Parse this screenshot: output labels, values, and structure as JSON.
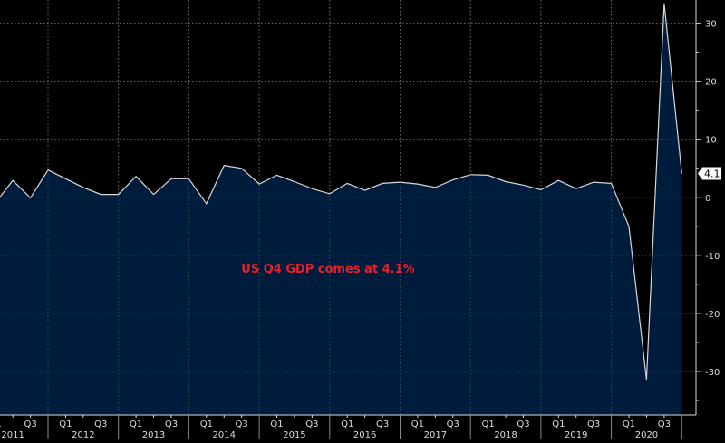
{
  "chart_data": {
    "type": "area",
    "title": "",
    "annotation": "US Q4 GDP comes at 4.1%",
    "last_value_label": "4.1",
    "years": [
      "2011",
      "2012",
      "2013",
      "2014",
      "2015",
      "2016",
      "2017",
      "2018",
      "2019",
      "2020"
    ],
    "quarter_tick_labels": [
      "Q1",
      "Q3"
    ],
    "x": [
      "2011Q1",
      "2011Q2",
      "2011Q3",
      "2011Q4",
      "2012Q1",
      "2012Q2",
      "2012Q3",
      "2012Q4",
      "2013Q1",
      "2013Q2",
      "2013Q3",
      "2013Q4",
      "2014Q1",
      "2014Q2",
      "2014Q3",
      "2014Q4",
      "2015Q1",
      "2015Q2",
      "2015Q3",
      "2015Q4",
      "2016Q1",
      "2016Q2",
      "2016Q3",
      "2016Q4",
      "2017Q1",
      "2017Q2",
      "2017Q3",
      "2017Q4",
      "2018Q1",
      "2018Q2",
      "2018Q3",
      "2018Q4",
      "2019Q1",
      "2019Q2",
      "2019Q3",
      "2019Q4",
      "2020Q1",
      "2020Q2",
      "2020Q3",
      "2020Q4"
    ],
    "values": [
      -1.0,
      2.9,
      -0.1,
      4.7,
      3.2,
      1.7,
      0.5,
      0.5,
      3.6,
      0.5,
      3.2,
      3.2,
      -1.1,
      5.5,
      5.0,
      2.3,
      3.8,
      2.7,
      1.5,
      0.6,
      2.4,
      1.2,
      2.4,
      2.6,
      2.3,
      1.7,
      3.0,
      3.9,
      3.8,
      2.7,
      2.1,
      1.3,
      2.9,
      1.5,
      2.6,
      2.4,
      -5.0,
      -31.4,
      33.4,
      4.1
    ],
    "yticks": [
      30,
      20,
      10,
      0,
      -10,
      -20,
      -30
    ],
    "ylim": [
      -37.5,
      34
    ],
    "y_axis_side": "right",
    "grid": true,
    "colors": {
      "background": "#000000",
      "fill": "#001c3d",
      "line": "#d8d8d8",
      "annotation": "#e8202a",
      "grid": "#6a6a6a"
    }
  }
}
